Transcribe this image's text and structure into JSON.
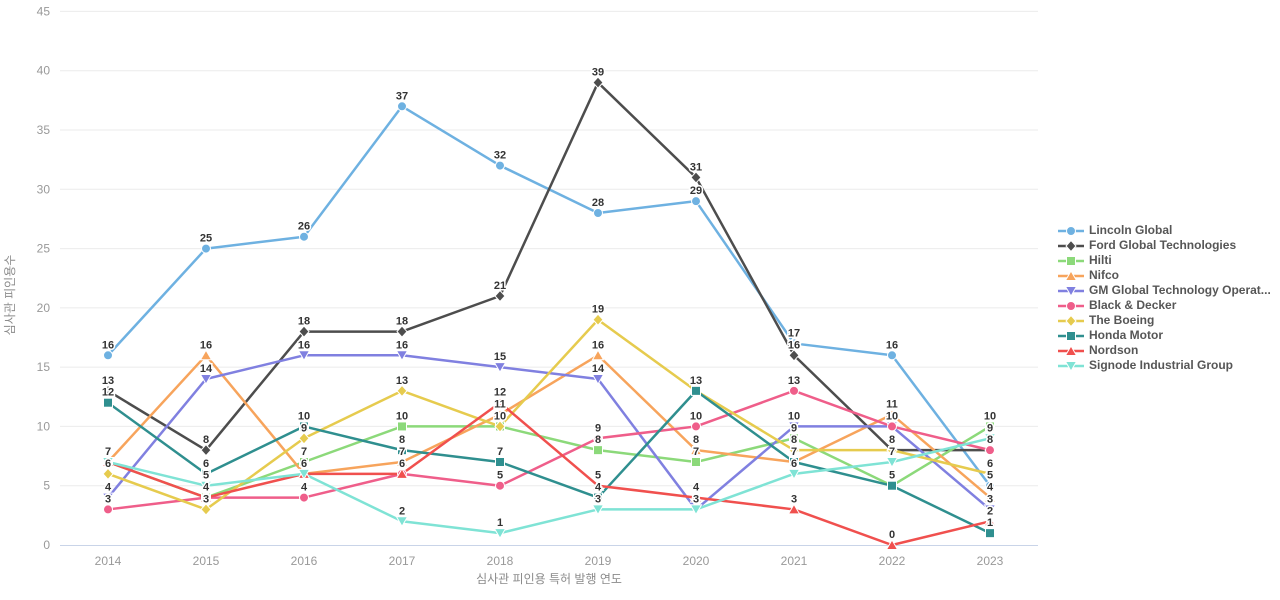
{
  "chart_data": {
    "type": "line",
    "title": "",
    "xlabel": "심사관 피인용 특허 발행 연도",
    "ylabel": "심사관 피인용수",
    "x": [
      2014,
      2015,
      2016,
      2017,
      2018,
      2019,
      2020,
      2021,
      2022,
      2023
    ],
    "ylim": [
      0,
      45
    ],
    "yticks": [
      0,
      5,
      10,
      15,
      20,
      25,
      30,
      35,
      40,
      45
    ],
    "grid": true,
    "legend_position": "right",
    "point_labels_visible": true,
    "series": [
      {
        "name": "Lincoln Global",
        "slug": "lincoln-global",
        "color": "#6EB1E1",
        "marker": "circle",
        "values": [
          16,
          25,
          26,
          37,
          32,
          28,
          29,
          17,
          16,
          5
        ]
      },
      {
        "name": "Ford Global Technologies",
        "slug": "ford-global-technologies",
        "color": "#4D4D4D",
        "marker": "diamond",
        "values": [
          13,
          8,
          18,
          18,
          21,
          39,
          31,
          16,
          8,
          8
        ]
      },
      {
        "name": "Hilti",
        "slug": "hilti",
        "color": "#8CD97A",
        "marker": "square",
        "values": [
          7,
          4,
          7,
          10,
          10,
          8,
          7,
          9,
          5,
          10
        ]
      },
      {
        "name": "Nifco",
        "slug": "nifco",
        "color": "#F7A45C",
        "marker": "triangle-up",
        "values": [
          7,
          16,
          6,
          7,
          11,
          16,
          8,
          7,
          11,
          4
        ]
      },
      {
        "name": "GM Global Technology Operat...",
        "slug": "gm-global-technology-operat",
        "color": "#8080E0",
        "marker": "triangle-down",
        "values": [
          4,
          14,
          16,
          16,
          15,
          14,
          3,
          10,
          10,
          3
        ]
      },
      {
        "name": "Black & Decker",
        "slug": "black-decker",
        "color": "#EF5E8A",
        "marker": "circle",
        "values": [
          3,
          4,
          4,
          6,
          5,
          9,
          10,
          13,
          10,
          8
        ]
      },
      {
        "name": "The Boeing",
        "slug": "the-boeing",
        "color": "#E6CB4E",
        "marker": "diamond",
        "values": [
          6,
          3,
          9,
          13,
          10,
          19,
          13,
          8,
          8,
          6
        ]
      },
      {
        "name": "Honda Motor",
        "slug": "honda-motor",
        "color": "#2F8F8F",
        "marker": "square",
        "values": [
          12,
          6,
          10,
          8,
          7,
          4,
          13,
          7,
          5,
          1
        ]
      },
      {
        "name": "Nordson",
        "slug": "nordson",
        "color": "#F0504E",
        "marker": "triangle-up",
        "values": [
          7,
          4,
          6,
          6,
          12,
          5,
          4,
          3,
          0,
          2
        ]
      },
      {
        "name": "Signode Industrial Group",
        "slug": "signode-industrial-group",
        "color": "#7FE3D5",
        "marker": "triangle-down",
        "values": [
          7,
          5,
          6,
          2,
          1,
          3,
          3,
          6,
          7,
          9
        ]
      }
    ],
    "colors": {
      "grid": "#ebebeb",
      "axis_line": "#c9d4e8",
      "tick_label": "#999999",
      "axis_title": "#8b8b8b",
      "point_label": "#333333",
      "legend_text": "#565656",
      "background": "#ffffff"
    }
  }
}
